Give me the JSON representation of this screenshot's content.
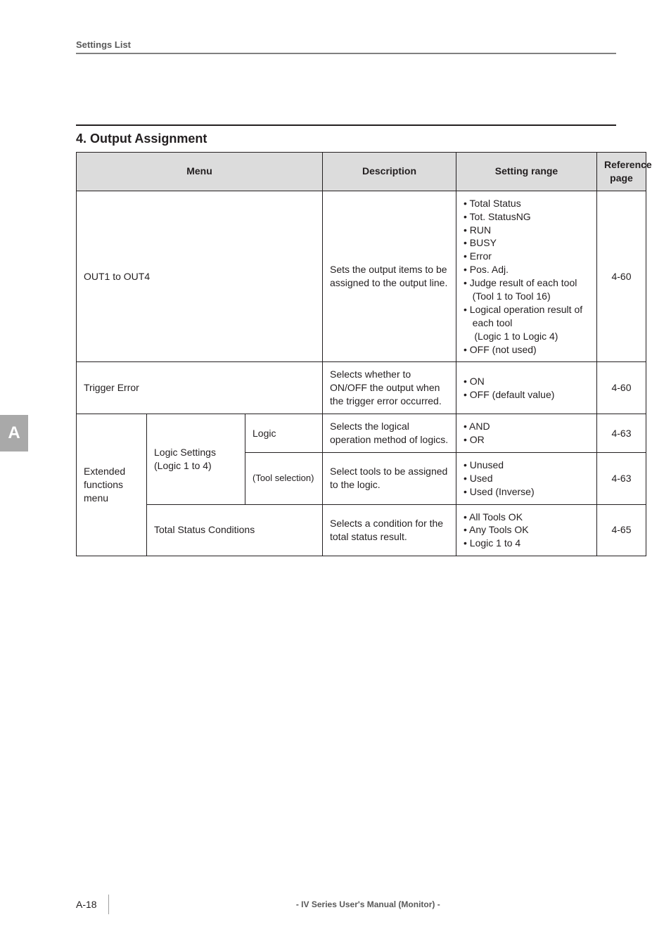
{
  "header": {
    "label": "Settings List"
  },
  "section": {
    "title": "4. Output Assignment"
  },
  "table": {
    "headers": {
      "menu": "Menu",
      "description": "Description",
      "setting_range": "Setting range",
      "reference": "Reference page"
    },
    "rows": {
      "out": {
        "menu": "OUT1 to OUT4",
        "desc": "Sets the output items to be assigned to the output line.",
        "range": [
          "Total Status",
          "Tot. StatusNG",
          "RUN",
          "BUSY",
          "Error",
          "Pos. Adj.",
          "Judge result of each tool (Tool 1 to Tool 16)",
          "Logical operation result of each tool",
          "(Logic 1 to Logic 4)",
          "OFF (not used)"
        ],
        "ref": "4-60"
      },
      "trigger": {
        "menu": "Trigger Error",
        "desc": "Selects whether to ON/OFF the output when the trigger error occurred.",
        "range": [
          "ON",
          "OFF (default value)"
        ],
        "ref": "4-60"
      },
      "ext_label": "Extended functions menu",
      "logic_settings_label": "Logic Settings (Logic 1 to 4)",
      "logic": {
        "menu": "Logic",
        "desc": "Selects the logical operation method of logics.",
        "range": [
          "AND",
          "OR"
        ],
        "ref": "4-63"
      },
      "tool": {
        "menu": "(Tool selection)",
        "desc": "Select tools to be assigned to the logic.",
        "range": [
          "Unused",
          "Used",
          "Used (Inverse)"
        ],
        "ref": "4-63"
      },
      "total": {
        "menu": "Total Status Conditions",
        "desc": "Selects a condition for the total status result.",
        "range": [
          "All Tools OK",
          "Any Tools OK",
          "Logic 1 to 4"
        ],
        "ref": "4-65"
      }
    }
  },
  "sidetab": "A",
  "footer": {
    "page": "A-18",
    "center": "- IV Series User's Manual (Monitor) -"
  }
}
